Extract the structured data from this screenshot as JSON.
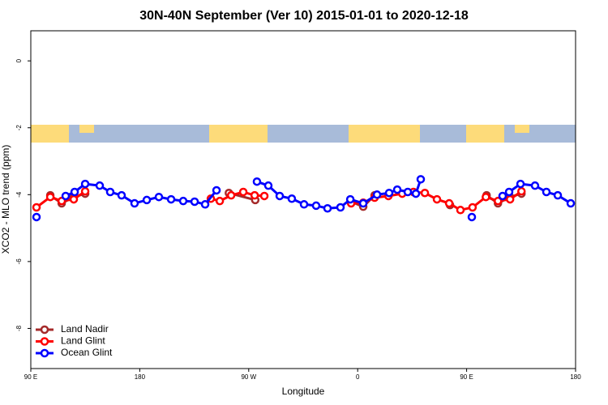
{
  "chart_data": {
    "type": "line",
    "title": "30N-40N September (Ver 10)   2015-01-01 to 2020-12-18",
    "x_label": "Longitude",
    "y_label": "XCO2 - MLO trend (ppm)",
    "xlim": [
      90,
      540
    ],
    "ylim": [
      -9.2,
      0.9
    ],
    "xticks": [
      {
        "value": 90,
        "label": "90 E"
      },
      {
        "value": 180,
        "label": "180"
      },
      {
        "value": 270,
        "label": "90 W"
      },
      {
        "value": 360,
        "label": "0"
      },
      {
        "value": 450,
        "label": "90 E"
      },
      {
        "value": 540,
        "label": "180"
      }
    ],
    "yticks": [
      0,
      -2,
      -4,
      -6,
      -8
    ],
    "legend": "bottom-left",
    "series": [
      {
        "name": "Land Nadir",
        "color": "#a52a2a",
        "x": [
          106.1,
          115.5,
          125.5,
          134.9,
          null,
          253.6,
          275.4,
          null,
          354.6,
          364.6,
          374,
          null,
          436.3,
          null,
          466.5,
          475.9,
          485.9,
          495.3
        ],
        "values": [
          -4.02,
          -4.26,
          -4.07,
          -3.97,
          null,
          -3.95,
          -4.16,
          null,
          -4.21,
          -4.36,
          -4.02,
          null,
          -4.31,
          null,
          -4.02,
          -4.26,
          -4.07,
          -3.97
        ]
      },
      {
        "name": "Land Glint",
        "color": "#ff0000",
        "x": [
          94.7,
          106.1,
          115.5,
          125.5,
          134.9,
          null,
          238.7,
          246.1,
          255.5,
          265.5,
          274.9,
          282.9,
          null,
          354.6,
          364.6,
          374,
          385.4,
          396.8,
          406.1,
          415.5,
          425.5,
          435.6,
          444.9,
          454.9,
          465.9,
          475.9,
          485.9,
          495.3
        ],
        "values": [
          -4.38,
          -4.07,
          -4.19,
          -4.14,
          -3.9,
          null,
          -4.12,
          -4.19,
          -4.02,
          -3.92,
          -4.02,
          -4.04,
          null,
          -4.26,
          -4.24,
          -4.09,
          -4.04,
          -3.97,
          -3.92,
          -3.95,
          -4.14,
          -4.26,
          -4.46,
          -4.38,
          -4.07,
          -4.19,
          -4.14,
          -3.9
        ]
      },
      {
        "name": "Ocean Glint",
        "color": "#0000ff",
        "x": [
          94.7,
          null,
          118.8,
          126.2,
          134.9,
          146.9,
          155.6,
          165,
          175.7,
          185.8,
          195.8,
          205.9,
          215.9,
          225.3,
          234,
          243.4,
          null,
          276.8,
          286.2,
          295.6,
          305.6,
          315.7,
          325.7,
          335.1,
          345.8,
          353.9,
          364.6,
          376,
          386,
          392.7,
          401.4,
          408.1,
          412.1,
          null,
          454.3,
          null,
          479.7,
          485.1,
          494.5,
          506.5,
          515.9,
          525.3,
          536
        ],
        "values": [
          -4.67,
          null,
          -4.04,
          -3.92,
          -3.68,
          -3.73,
          -3.92,
          -4.02,
          -4.26,
          -4.16,
          -4.07,
          -4.14,
          -4.19,
          -4.21,
          -4.29,
          -3.87,
          null,
          -3.61,
          -3.73,
          -4.04,
          -4.12,
          -4.29,
          -4.33,
          -4.41,
          -4.38,
          -4.14,
          -4.26,
          -4.0,
          -3.95,
          -3.85,
          -3.92,
          -3.97,
          -3.54,
          null,
          -4.67,
          null,
          -4.04,
          -3.92,
          -3.68,
          -3.73,
          -3.92,
          -4.02,
          -4.26
        ]
      }
    ]
  }
}
